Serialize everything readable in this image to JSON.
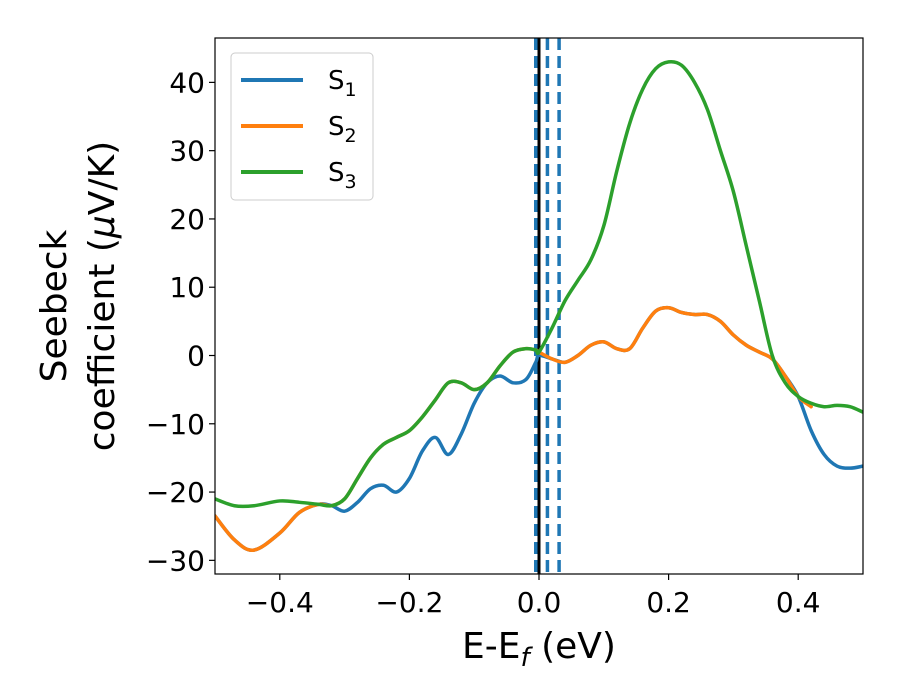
{
  "chart_data": {
    "type": "line",
    "xlabel": "E-E",
    "xlabel_sub": "f",
    "xlabel_unit": " (eV)",
    "ylabel_line1": "Seebeck",
    "ylabel_line2": "coefficient  (",
    "ylabel_mu": "μ",
    "ylabel_unit": "V/K)",
    "xlim": [
      -0.5,
      0.5
    ],
    "ylim": [
      -32,
      46.5
    ],
    "xticks": [
      -0.4,
      -0.2,
      0.0,
      0.2,
      0.4
    ],
    "xtick_labels": [
      "−0.4",
      "−0.2",
      "0.0",
      "0.2",
      "0.4"
    ],
    "yticks": [
      -30,
      -20,
      -10,
      0,
      10,
      20,
      30,
      40
    ],
    "ytick_labels": [
      "−30",
      "−20",
      "−10",
      "0",
      "10",
      "20",
      "30",
      "40"
    ],
    "grid": false,
    "legend_position": "top-left",
    "vertical_lines": [
      {
        "x": 0.0,
        "style": "solid",
        "color": "#000000"
      },
      {
        "x": -0.005,
        "style": "dashed",
        "color": "#1f77b4"
      },
      {
        "x": 0.013,
        "style": "dashed",
        "color": "#1f77b4"
      },
      {
        "x": 0.031,
        "style": "dashed",
        "color": "#1f77b4"
      }
    ],
    "series": [
      {
        "name": "S",
        "name_sub": "1",
        "color": "#1f77b4",
        "x": [
          -0.5,
          -0.47,
          -0.44,
          -0.4,
          -0.37,
          -0.34,
          -0.32,
          -0.3,
          -0.28,
          -0.26,
          -0.24,
          -0.22,
          -0.2,
          -0.18,
          -0.16,
          -0.14,
          -0.12,
          -0.1,
          -0.08,
          -0.06,
          -0.04,
          -0.02,
          -0.005,
          0.0,
          0.02,
          0.04,
          0.06,
          0.08,
          0.1,
          0.12,
          0.14,
          0.16,
          0.18,
          0.2,
          0.22,
          0.24,
          0.26,
          0.28,
          0.3,
          0.32,
          0.34,
          0.36,
          0.38,
          0.4,
          0.42,
          0.44,
          0.46,
          0.48,
          0.5
        ],
        "y": [
          -23.5,
          -27,
          -28.5,
          -26,
          -23,
          -21.8,
          -22,
          -22.8,
          -21.5,
          -19.5,
          -19,
          -20,
          -18,
          -14,
          -12,
          -14.5,
          -11.5,
          -7,
          -4,
          -3,
          -4,
          -3.5,
          -1,
          0,
          -0.5,
          -1,
          0,
          1.5,
          2,
          1,
          1,
          4,
          6.5,
          7,
          6.3,
          6,
          6,
          5,
          3,
          1.5,
          0.5,
          -0.5,
          -3,
          -6,
          -11,
          -14.5,
          -16.2,
          -16.5,
          -16.2
        ]
      },
      {
        "name": "S",
        "name_sub": "2",
        "color": "#ff7f0e",
        "x": [
          -0.5,
          -0.47,
          -0.44,
          -0.4,
          -0.37,
          -0.34,
          -0.32,
          -0.3,
          -0.28,
          -0.26,
          -0.24,
          -0.22,
          -0.2,
          -0.18,
          -0.16,
          -0.14,
          -0.12,
          -0.1,
          -0.08,
          -0.06,
          -0.04,
          -0.02,
          -0.005,
          0.0,
          0.02,
          0.04,
          0.06,
          0.08,
          0.1,
          0.12,
          0.14,
          0.16,
          0.18,
          0.2,
          0.22,
          0.24,
          0.26,
          0.28,
          0.3,
          0.32,
          0.34,
          0.36,
          0.38,
          0.4,
          0.42
        ],
        "y": [
          -23.5,
          -27,
          -28.5,
          -26,
          -23,
          -21.8,
          -22,
          -21,
          -18,
          -15,
          -13,
          -12,
          -11,
          -9,
          -6.5,
          -4,
          -4,
          -5,
          -4,
          -1.5,
          0.5,
          1,
          0.8,
          0.5,
          -0.5,
          -1,
          0,
          1.5,
          2,
          1,
          1,
          4,
          6.5,
          7,
          6.3,
          6,
          6,
          5,
          3,
          1.5,
          0.5,
          -0.5,
          -3,
          -6,
          -7.5
        ]
      },
      {
        "name": "S",
        "name_sub": "3",
        "color": "#2ca02c",
        "x": [
          -0.5,
          -0.47,
          -0.44,
          -0.4,
          -0.37,
          -0.34,
          -0.32,
          -0.3,
          -0.28,
          -0.26,
          -0.24,
          -0.22,
          -0.2,
          -0.18,
          -0.16,
          -0.14,
          -0.12,
          -0.1,
          -0.08,
          -0.06,
          -0.04,
          -0.02,
          -0.005,
          0.0,
          0.02,
          0.04,
          0.06,
          0.08,
          0.1,
          0.12,
          0.14,
          0.16,
          0.18,
          0.2,
          0.22,
          0.24,
          0.26,
          0.28,
          0.3,
          0.32,
          0.34,
          0.36,
          0.38,
          0.4,
          0.42,
          0.44,
          0.46,
          0.48,
          0.5
        ],
        "y": [
          -21,
          -22,
          -22,
          -21.3,
          -21.5,
          -21.8,
          -22,
          -21,
          -18,
          -15,
          -13,
          -12,
          -11,
          -9,
          -6.5,
          -4,
          -4,
          -5,
          -4,
          -1.5,
          0.5,
          1,
          0.8,
          0.5,
          4,
          8,
          11,
          14,
          19,
          27,
          34,
          39,
          42,
          43,
          42.5,
          40,
          36,
          30,
          24,
          16,
          8,
          0,
          -4,
          -6,
          -7,
          -7.5,
          -7.3,
          -7.5,
          -8.3
        ]
      }
    ]
  }
}
